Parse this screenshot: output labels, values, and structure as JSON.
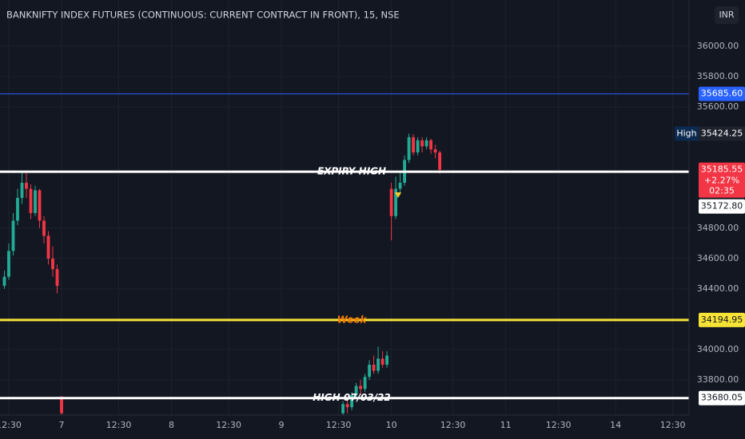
{
  "chart_data": {
    "type": "candlestick",
    "title": "BANKNIFTY INDEX FUTURES (CONTINUOUS: CURRENT CONTRACT IN FRONT), 15, NSE",
    "currency": "INR",
    "up_color": "#22ab94",
    "down_color": "#f23645",
    "grid": true,
    "x": [
      1,
      2,
      3,
      4,
      5,
      6,
      7,
      8,
      9,
      10,
      11,
      12,
      13,
      14,
      78,
      79,
      80,
      81,
      82,
      83,
      84,
      85,
      86,
      87,
      88,
      89,
      90,
      91,
      92,
      93,
      94,
      95,
      96,
      97,
      98,
      99,
      100
    ],
    "open": [
      34420,
      34480,
      34650,
      34850,
      35000,
      35100,
      35060,
      34900,
      35050,
      34850,
      34750,
      34600,
      34530,
      33690,
      33580,
      33640,
      33620,
      33700,
      33760,
      33740,
      33820,
      33900,
      33860,
      33940,
      33900,
      35060,
      34880,
      35060,
      35100,
      35250,
      35400,
      35300,
      35380,
      35340,
      35380,
      35320,
      35300
    ],
    "high": [
      34520,
      34700,
      34900,
      35060,
      35170,
      35175,
      35090,
      35080,
      35060,
      34880,
      34780,
      34680,
      34560,
      33690,
      33660,
      33680,
      33720,
      33780,
      33800,
      33840,
      33930,
      33960,
      34020,
      33990,
      33990,
      35100,
      35140,
      35170,
      35280,
      35424.25,
      35420,
      35400,
      35400,
      35400,
      35390,
      35350,
      35310
    ],
    "low": [
      34400,
      34460,
      34620,
      34820,
      34960,
      35000,
      34860,
      34880,
      34800,
      34700,
      34560,
      34480,
      34370,
      33570,
      33570,
      33580,
      33600,
      33680,
      33700,
      33720,
      33800,
      33840,
      33840,
      33880,
      33880,
      34720,
      34860,
      35020,
      35080,
      35230,
      35280,
      35280,
      35300,
      35320,
      35290,
      35260,
      35160
    ],
    "close": [
      34480,
      34650,
      34850,
      35000,
      35100,
      35060,
      34900,
      35050,
      34850,
      34750,
      34600,
      34530,
      34420,
      33580,
      33640,
      33620,
      33700,
      33760,
      33740,
      33820,
      33900,
      33860,
      33940,
      33900,
      33960,
      34880,
      35060,
      35100,
      35250,
      35400,
      35300,
      35380,
      35340,
      35380,
      35320,
      35300,
      35185.55
    ],
    "xlim": [
      0,
      156.7
    ],
    "xticks": [
      {
        "value": 2,
        "label": "12:30"
      },
      {
        "value": 14,
        "label": "7"
      },
      {
        "value": 27,
        "label": "12:30"
      },
      {
        "value": 39,
        "label": "8"
      },
      {
        "value": 52,
        "label": "12:30"
      },
      {
        "value": 64,
        "label": "9"
      },
      {
        "value": 77,
        "label": "12:30"
      },
      {
        "value": 89,
        "label": "10"
      },
      {
        "value": 103,
        "label": "12:30"
      },
      {
        "value": 115,
        "label": "11"
      },
      {
        "value": 127,
        "label": "12:30"
      },
      {
        "value": 140,
        "label": "14"
      },
      {
        "value": 153,
        "label": "12:30"
      }
    ],
    "ylim": [
      33568,
      36305
    ],
    "yticks": [
      {
        "value": 36000,
        "label": "36000.00"
      },
      {
        "value": 35800,
        "label": "35800.00"
      },
      {
        "value": 35600,
        "label": "35600.00"
      },
      {
        "value": 34800,
        "label": "34800.00"
      },
      {
        "value": 34600,
        "label": "34600.00"
      },
      {
        "value": 34400,
        "label": "34400.00"
      },
      {
        "value": 34000,
        "label": "34000.00"
      },
      {
        "value": 33800,
        "label": "33800.00"
      }
    ],
    "levels": [
      {
        "value": 35685.6,
        "label": "35685.60",
        "color": "#2962ff",
        "text_color": "#ffffff"
      },
      {
        "value": 35172.8,
        "label": "35172.80",
        "name": "EXPIRY HIGH",
        "color": "#ffffff",
        "text_color": "#ffffff"
      },
      {
        "value": 34194.95,
        "name": "Week",
        "color": "#f7e336",
        "text_color": "#f57c00"
      },
      {
        "value": 33680.05,
        "name": "HIGH 07/03/22",
        "color": "#ffffff",
        "text_color": "#ffffff"
      }
    ],
    "high_marker": {
      "name": "High",
      "value": 35424.25
    },
    "last_price": {
      "value": 35185.55,
      "change": "+2.27%",
      "countdown": "02:35"
    }
  }
}
